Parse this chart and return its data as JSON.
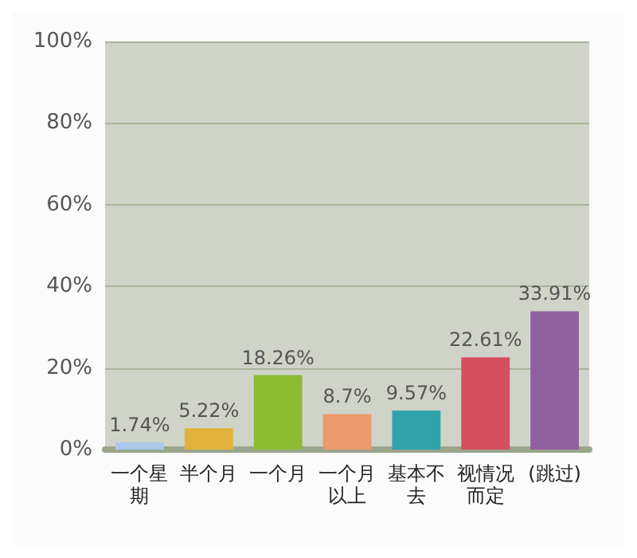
{
  "chart_data": {
    "type": "bar",
    "categories": [
      "一个星期",
      "半个月",
      "一个月",
      "一个月以上",
      "基本不去",
      "视情况而定",
      "(跳过)"
    ],
    "values": [
      1.74,
      5.22,
      18.26,
      8.7,
      9.57,
      22.61,
      33.91
    ],
    "value_labels": [
      "1.74%",
      "5.22%",
      "18.26%",
      "8.7%",
      "9.57%",
      "22.61%",
      "33.91%"
    ],
    "colors": [
      "#a9c8ea",
      "#e2b33a",
      "#8cbc32",
      "#ec9a6c",
      "#2ea3aa",
      "#d4505e",
      "#90609e"
    ],
    "ylim": [
      0,
      100
    ],
    "yticks": [
      {
        "value": 0,
        "label": "0%"
      },
      {
        "value": 20,
        "label": "20%"
      },
      {
        "value": 40,
        "label": "40%"
      },
      {
        "value": 60,
        "label": "60%"
      },
      {
        "value": 80,
        "label": "80%"
      },
      {
        "value": 100,
        "label": "100%"
      }
    ],
    "grid": "y"
  }
}
